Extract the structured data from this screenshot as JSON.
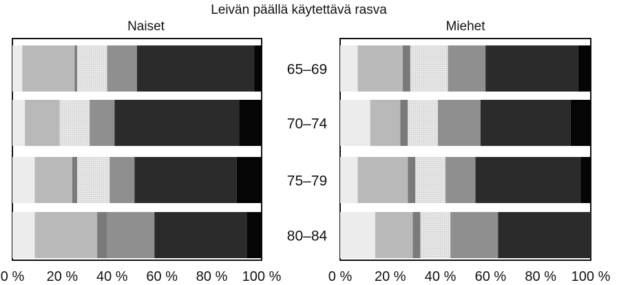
{
  "chart_data": [
    {
      "type": "bar",
      "orientation": "horizontal",
      "stacked": true,
      "title": "Naiset",
      "categories": [
        "65–69",
        "70–74",
        "75–79",
        "80–84"
      ],
      "series": [
        {
          "values": [
            4,
            5,
            9,
            9
          ]
        },
        {
          "values": [
            21,
            14,
            15,
            25
          ]
        },
        {
          "values": [
            1,
            0,
            2,
            4
          ]
        },
        {
          "values": [
            12,
            12,
            13,
            0
          ]
        },
        {
          "values": [
            12,
            10,
            10,
            19
          ]
        },
        {
          "values": [
            47,
            50,
            41,
            37
          ]
        },
        {
          "values": [
            3,
            9,
            10,
            6
          ]
        }
      ],
      "xlim": [
        0,
        100
      ],
      "xticks": [
        "0 %",
        "20 %",
        "40 %",
        "60 %",
        "80 %",
        "100 %"
      ],
      "grid": false
    },
    {
      "type": "bar",
      "orientation": "horizontal",
      "stacked": true,
      "title": "Miehet",
      "categories": [
        "65–69",
        "70–74",
        "75–79",
        "80–84"
      ],
      "series": [
        {
          "values": [
            7,
            12,
            7,
            14
          ]
        },
        {
          "values": [
            18,
            12,
            20,
            15
          ]
        },
        {
          "values": [
            3,
            3,
            3,
            3
          ]
        },
        {
          "values": [
            15,
            12,
            12,
            12
          ]
        },
        {
          "values": [
            15,
            17,
            12,
            19
          ]
        },
        {
          "values": [
            37,
            36,
            42,
            37
          ]
        },
        {
          "values": [
            5,
            8,
            4,
            0
          ]
        }
      ],
      "xlim": [
        0,
        100
      ],
      "xticks": [
        "0 %",
        "20 %",
        "40 %",
        "60 %",
        "80 %",
        "100 %"
      ],
      "grid": false
    }
  ],
  "heading": "Leivän päällä käytettävä rasva",
  "segment_colors": [
    "#ececec",
    "#b9b9b9",
    "#7a7a7a",
    "#e2e2e2",
    "#8f8f8f",
    "#2b2b2b",
    "#050505"
  ]
}
